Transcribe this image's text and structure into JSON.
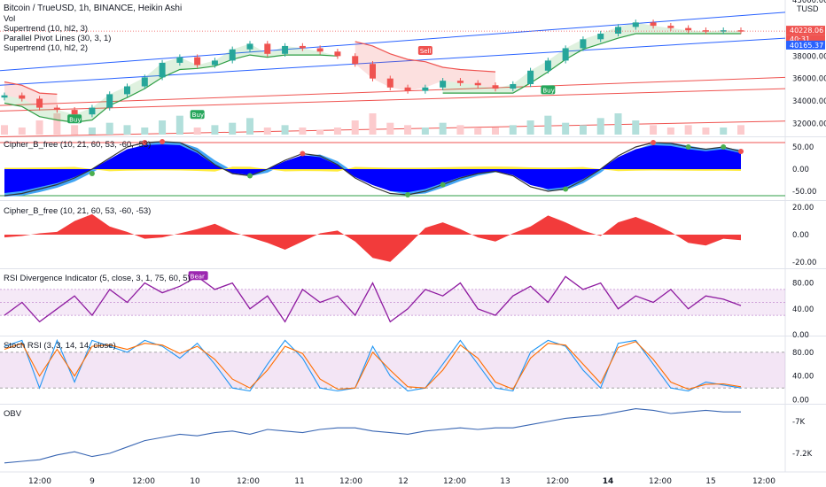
{
  "header": {
    "title": "Bitcoin / TrueUSD, 1h, BINANCE, Heikin Ashi",
    "currency": "TUSD",
    "vol": "Vol",
    "studies": [
      "Supertrend (10, hl2, 3)",
      "Parallel Pivot Lines (30, 3, 1)",
      "Supertrend (10, hl2, 2)"
    ]
  },
  "price_boxes": [
    {
      "label": "40228.06",
      "color": "#ef5350"
    },
    {
      "label": "40:31",
      "color": "#ef5350"
    },
    {
      "label": "40165.37",
      "color": "#2962ff"
    }
  ],
  "signals": [
    {
      "text": "Buy",
      "color": "#26a65b"
    },
    {
      "text": "Buy",
      "color": "#26a65b"
    },
    {
      "text": "Sell",
      "color": "#ef5350"
    },
    {
      "text": "Buy",
      "color": "#26a65b"
    },
    {
      "text": "Bear",
      "color": "#9c27b0"
    }
  ],
  "colors": {
    "up": "#26a69a",
    "down": "#ef5350",
    "wave": "#0000ff",
    "histo": "#f23b3b",
    "rsi": "#8e1aa0",
    "stoch_k": "#2196f3",
    "stoch_d": "#ff6d00",
    "obv": "#3966b3"
  },
  "time_axis": [
    "12:00",
    "9",
    "12:00",
    "10",
    "12:00",
    "11",
    "12:00",
    "12",
    "12:00",
    "13",
    "12:00",
    "14",
    "12:00",
    "15",
    "12:00",
    "12:00"
  ],
  "chart_data": [
    {
      "type": "candlestick",
      "title": "Bitcoin / TrueUSD, 1h, BINANCE, Heikin Ashi",
      "y_ticks": [
        "43000.00",
        "38000.00",
        "36000.00",
        "34000.00",
        "32000.00"
      ],
      "ylim": [
        31000,
        43000
      ],
      "close": [
        34500,
        34200,
        33400,
        33200,
        32800,
        33400,
        34600,
        35300,
        36100,
        37400,
        37900,
        37200,
        37600,
        38600,
        39100,
        38200,
        38900,
        38700,
        38400,
        38000,
        37300,
        36000,
        35200,
        34900,
        35200,
        35800,
        35600,
        35400,
        35100,
        35500,
        36700,
        37600,
        38700,
        39500,
        40000,
        40600,
        41000,
        40700,
        40500,
        40300,
        40200,
        40300,
        40228
      ],
      "supertrend_up": [
        33800,
        33500,
        32600,
        32300,
        32100,
        32300,
        33600,
        34300,
        35100,
        36100,
        36800,
        36900,
        37100,
        37700,
        38100,
        37900,
        38100,
        38100,
        38100,
        38000,
        null,
        null,
        null,
        null,
        null,
        34700,
        34700,
        34700,
        34700,
        34700,
        35600,
        36600,
        37700,
        38600,
        39100,
        39600,
        40000,
        40000,
        40000,
        40000,
        40000,
        40000,
        40000
      ],
      "supertrend_down": [
        35700,
        35400,
        34700,
        34600,
        null,
        null,
        null,
        null,
        null,
        null,
        null,
        null,
        null,
        null,
        null,
        null,
        null,
        null,
        null,
        null,
        39300,
        38900,
        38200,
        37700,
        37500,
        37000,
        36800,
        36700,
        36600,
        null,
        null,
        null,
        null,
        null,
        null,
        null,
        null,
        null,
        null,
        null,
        null,
        null,
        null
      ],
      "pivot_lines": [
        {
          "from": 36700,
          "to": 41900,
          "color": "#2962ff"
        },
        {
          "from": 35400,
          "to": 39600,
          "color": "#2962ff"
        },
        {
          "from": 33600,
          "to": 36100,
          "color": "#ef5350"
        },
        {
          "from": 33100,
          "to": 35100,
          "color": "#ef5350"
        },
        {
          "from": 30800,
          "to": 32200,
          "color": "#ef5350"
        }
      ],
      "volume": [
        4,
        3,
        6,
        9,
        4,
        3,
        5,
        4,
        3,
        6,
        8,
        3,
        4,
        5,
        7,
        3,
        4,
        3,
        2,
        3,
        6,
        9,
        5,
        4,
        3,
        5,
        4,
        3,
        3,
        4,
        6,
        8,
        5,
        4,
        7,
        9,
        6,
        4,
        3,
        4,
        3,
        3,
        4
      ]
    },
    {
      "type": "area",
      "title": "Cipher_B_free (10, 21, 60, 53, -60, -53)",
      "y_ticks": [
        "50.00",
        "0.00",
        "-50.00"
      ],
      "ylim": [
        -70,
        70
      ],
      "series": [
        {
          "values": [
            -60,
            -55,
            -45,
            -35,
            -20,
            0,
            25,
            50,
            60,
            62,
            60,
            40,
            10,
            -10,
            -15,
            0,
            20,
            35,
            30,
            10,
            -20,
            -40,
            -55,
            -58,
            -50,
            -35,
            -20,
            -10,
            -5,
            -15,
            -40,
            -50,
            -45,
            -25,
            0,
            30,
            50,
            60,
            58,
            50,
            45,
            50,
            40
          ]
        },
        {
          "values": [
            -62,
            -60,
            -52,
            -42,
            -28,
            -8,
            15,
            42,
            57,
            62,
            61,
            48,
            20,
            -2,
            -16,
            -8,
            12,
            30,
            33,
            18,
            -10,
            -32,
            -50,
            -58,
            -55,
            -42,
            -27,
            -15,
            -7,
            -10,
            -30,
            -48,
            -48,
            -32,
            -8,
            22,
            44,
            58,
            60,
            53,
            46,
            48,
            44
          ]
        }
      ]
    },
    {
      "type": "bar",
      "title": "Cipher_B_free (10, 21, 60, 53, -60, -53)",
      "y_ticks": [
        "20.00",
        "0.00",
        "-20.00"
      ],
      "ylim": [
        -24,
        24
      ],
      "values": [
        -2,
        -1,
        1,
        2,
        10,
        15,
        6,
        2,
        -3,
        -2,
        1,
        4,
        8,
        2,
        -2,
        -6,
        -11,
        -5,
        1,
        3,
        -5,
        -17,
        -20,
        -8,
        5,
        9,
        4,
        -2,
        -5,
        1,
        6,
        14,
        9,
        3,
        -1,
        9,
        13,
        8,
        2,
        -6,
        -8,
        -3,
        -4
      ]
    },
    {
      "type": "line",
      "title": "RSI Divergence Indicator (5, close, 3, 1, 75, 60, 5)",
      "y_ticks": [
        "80.00",
        "40.00",
        "0.00"
      ],
      "ylim": [
        0,
        100
      ],
      "values": [
        30,
        50,
        20,
        40,
        60,
        30,
        70,
        50,
        80,
        65,
        75,
        90,
        70,
        80,
        40,
        60,
        20,
        70,
        50,
        60,
        30,
        80,
        20,
        40,
        70,
        60,
        80,
        40,
        30,
        60,
        75,
        50,
        90,
        70,
        80,
        40,
        60,
        50,
        70,
        40,
        60,
        55,
        45
      ]
    },
    {
      "type": "line",
      "title": "Stoch RSI (3, 3, 14, 14, close)",
      "y_ticks": [
        "80.00",
        "40.00",
        "0.00"
      ],
      "ylim": [
        -5,
        105
      ],
      "series": [
        {
          "values": [
            90,
            100,
            20,
            100,
            30,
            100,
            90,
            80,
            100,
            90,
            70,
            95,
            60,
            20,
            15,
            60,
            100,
            70,
            20,
            15,
            20,
            90,
            40,
            15,
            20,
            60,
            100,
            60,
            20,
            15,
            80,
            100,
            90,
            50,
            20,
            95,
            100,
            60,
            20,
            15,
            30,
            25,
            20
          ]
        },
        {
          "values": [
            85,
            95,
            40,
            85,
            40,
            90,
            92,
            85,
            95,
            92,
            78,
            90,
            68,
            35,
            20,
            50,
            90,
            78,
            35,
            18,
            20,
            80,
            50,
            22,
            20,
            50,
            92,
            70,
            30,
            18,
            70,
            95,
            92,
            60,
            28,
            88,
            98,
            68,
            30,
            18,
            26,
            27,
            22
          ]
        }
      ]
    },
    {
      "type": "line",
      "title": "OBV",
      "y_ticks": [
        "-7K",
        "-7.2K"
      ],
      "ylim": [
        -7300,
        -6900
      ],
      "values": [
        -7260,
        -7250,
        -7240,
        -7210,
        -7190,
        -7220,
        -7200,
        -7160,
        -7120,
        -7100,
        -7080,
        -7090,
        -7070,
        -7060,
        -7080,
        -7050,
        -7060,
        -7070,
        -7050,
        -7040,
        -7040,
        -7060,
        -7070,
        -7080,
        -7060,
        -7050,
        -7040,
        -7050,
        -7040,
        -7040,
        -7020,
        -7000,
        -6980,
        -6970,
        -6960,
        -6940,
        -6920,
        -6930,
        -6950,
        -6940,
        -6930,
        -6940,
        -6940
      ]
    }
  ]
}
